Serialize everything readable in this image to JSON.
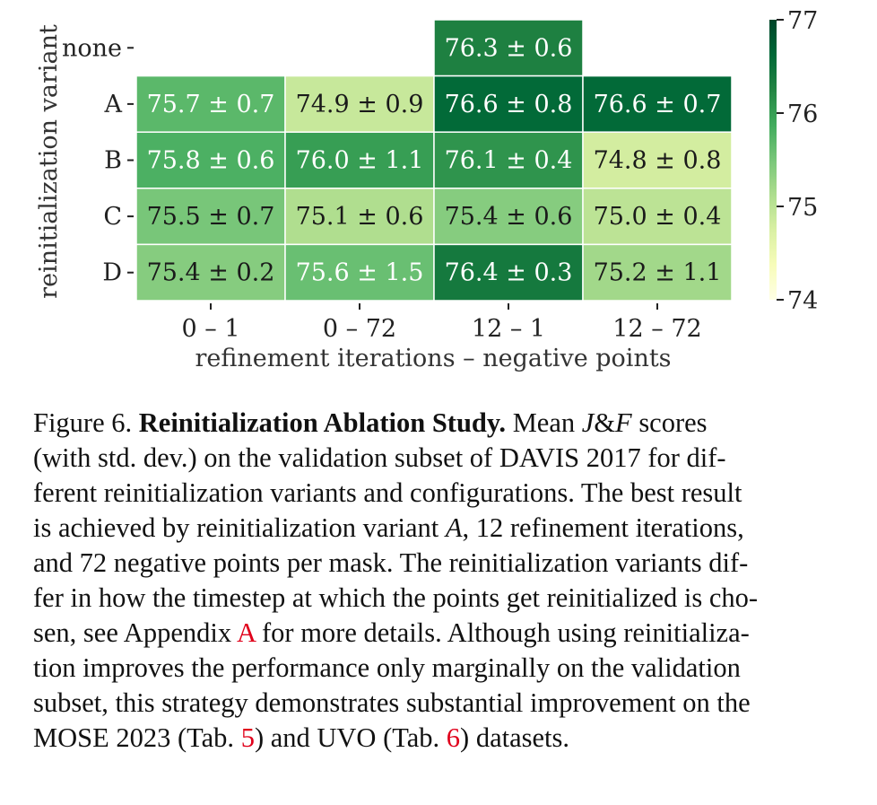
{
  "chart_data": {
    "type": "heatmap",
    "rows": [
      "none",
      "A",
      "B",
      "C",
      "D"
    ],
    "columns": [
      "0 – 1",
      "0 – 72",
      "12 – 1",
      "12 – 72"
    ],
    "values": [
      [
        null,
        null,
        76.3,
        null
      ],
      [
        75.7,
        74.9,
        76.6,
        76.6
      ],
      [
        75.8,
        76.0,
        76.1,
        74.8
      ],
      [
        75.5,
        75.1,
        75.4,
        75.0
      ],
      [
        75.4,
        75.6,
        76.4,
        75.2
      ]
    ],
    "labels": [
      [
        null,
        null,
        "76.3 ± 0.6",
        null
      ],
      [
        "75.7 ± 0.7",
        "74.9 ± 0.9",
        "76.6 ± 0.8",
        "76.6 ± 0.7"
      ],
      [
        "75.8 ± 0.6",
        "76.0 ± 1.1",
        "76.1 ± 0.4",
        "74.8 ± 0.8"
      ],
      [
        "75.5 ± 0.7",
        "75.1 ± 0.6",
        "75.4 ± 0.6",
        "75.0 ± 0.4"
      ],
      [
        "75.4 ± 0.2",
        "75.6 ± 1.5",
        "76.4 ± 0.3",
        "75.2 ± 1.1"
      ]
    ],
    "xlabel": "refinement iterations – negative points",
    "ylabel": "reinitialization variant",
    "colorbar": {
      "min": 74,
      "max": 77,
      "ticks": [
        "77",
        "76",
        "75",
        "74"
      ],
      "colormap": "YlGn"
    }
  },
  "caption": {
    "lines": [
      [
        {
          "t": "Figure 6.  "
        },
        {
          "t": "Reinitialization Ablation Study.",
          "s": "bold"
        },
        {
          "t": "  Mean "
        },
        {
          "t": "J",
          "s": "math"
        },
        {
          "t": "&"
        },
        {
          "t": "F",
          "s": "math"
        },
        {
          "t": " scores"
        }
      ],
      [
        {
          "t": "(with std.  dev.)  on the validation subset of DAVIS 2017 for dif-"
        }
      ],
      [
        {
          "t": "ferent reinitialization variants and configurations.  The best result"
        }
      ],
      [
        {
          "t": "is achieved by reinitialization variant "
        },
        {
          "t": "A",
          "s": "math"
        },
        {
          "t": ", 12 refinement iterations,"
        }
      ],
      [
        {
          "t": "and 72 negative points per mask.  The reinitialization variants dif-"
        }
      ],
      [
        {
          "t": "fer in how the timestep at which the points get reinitialized is cho-"
        }
      ],
      [
        {
          "t": "sen, see Appendix "
        },
        {
          "t": "A",
          "s": "link"
        },
        {
          "t": " for more details.  Although using reinitializa-"
        }
      ],
      [
        {
          "t": "tion improves the performance only marginally on the validation"
        }
      ],
      [
        {
          "t": "subset, this strategy demonstrates substantial improvement on the"
        }
      ],
      [
        {
          "t": "MOSE 2023 (Tab. "
        },
        {
          "t": "5",
          "s": "link"
        },
        {
          "t": ") and UVO (Tab. "
        },
        {
          "t": "6",
          "s": "link"
        },
        {
          "t": ") datasets."
        }
      ]
    ]
  },
  "colors": {
    "link": "#e0001b",
    "cell_border": "#ffffff"
  }
}
